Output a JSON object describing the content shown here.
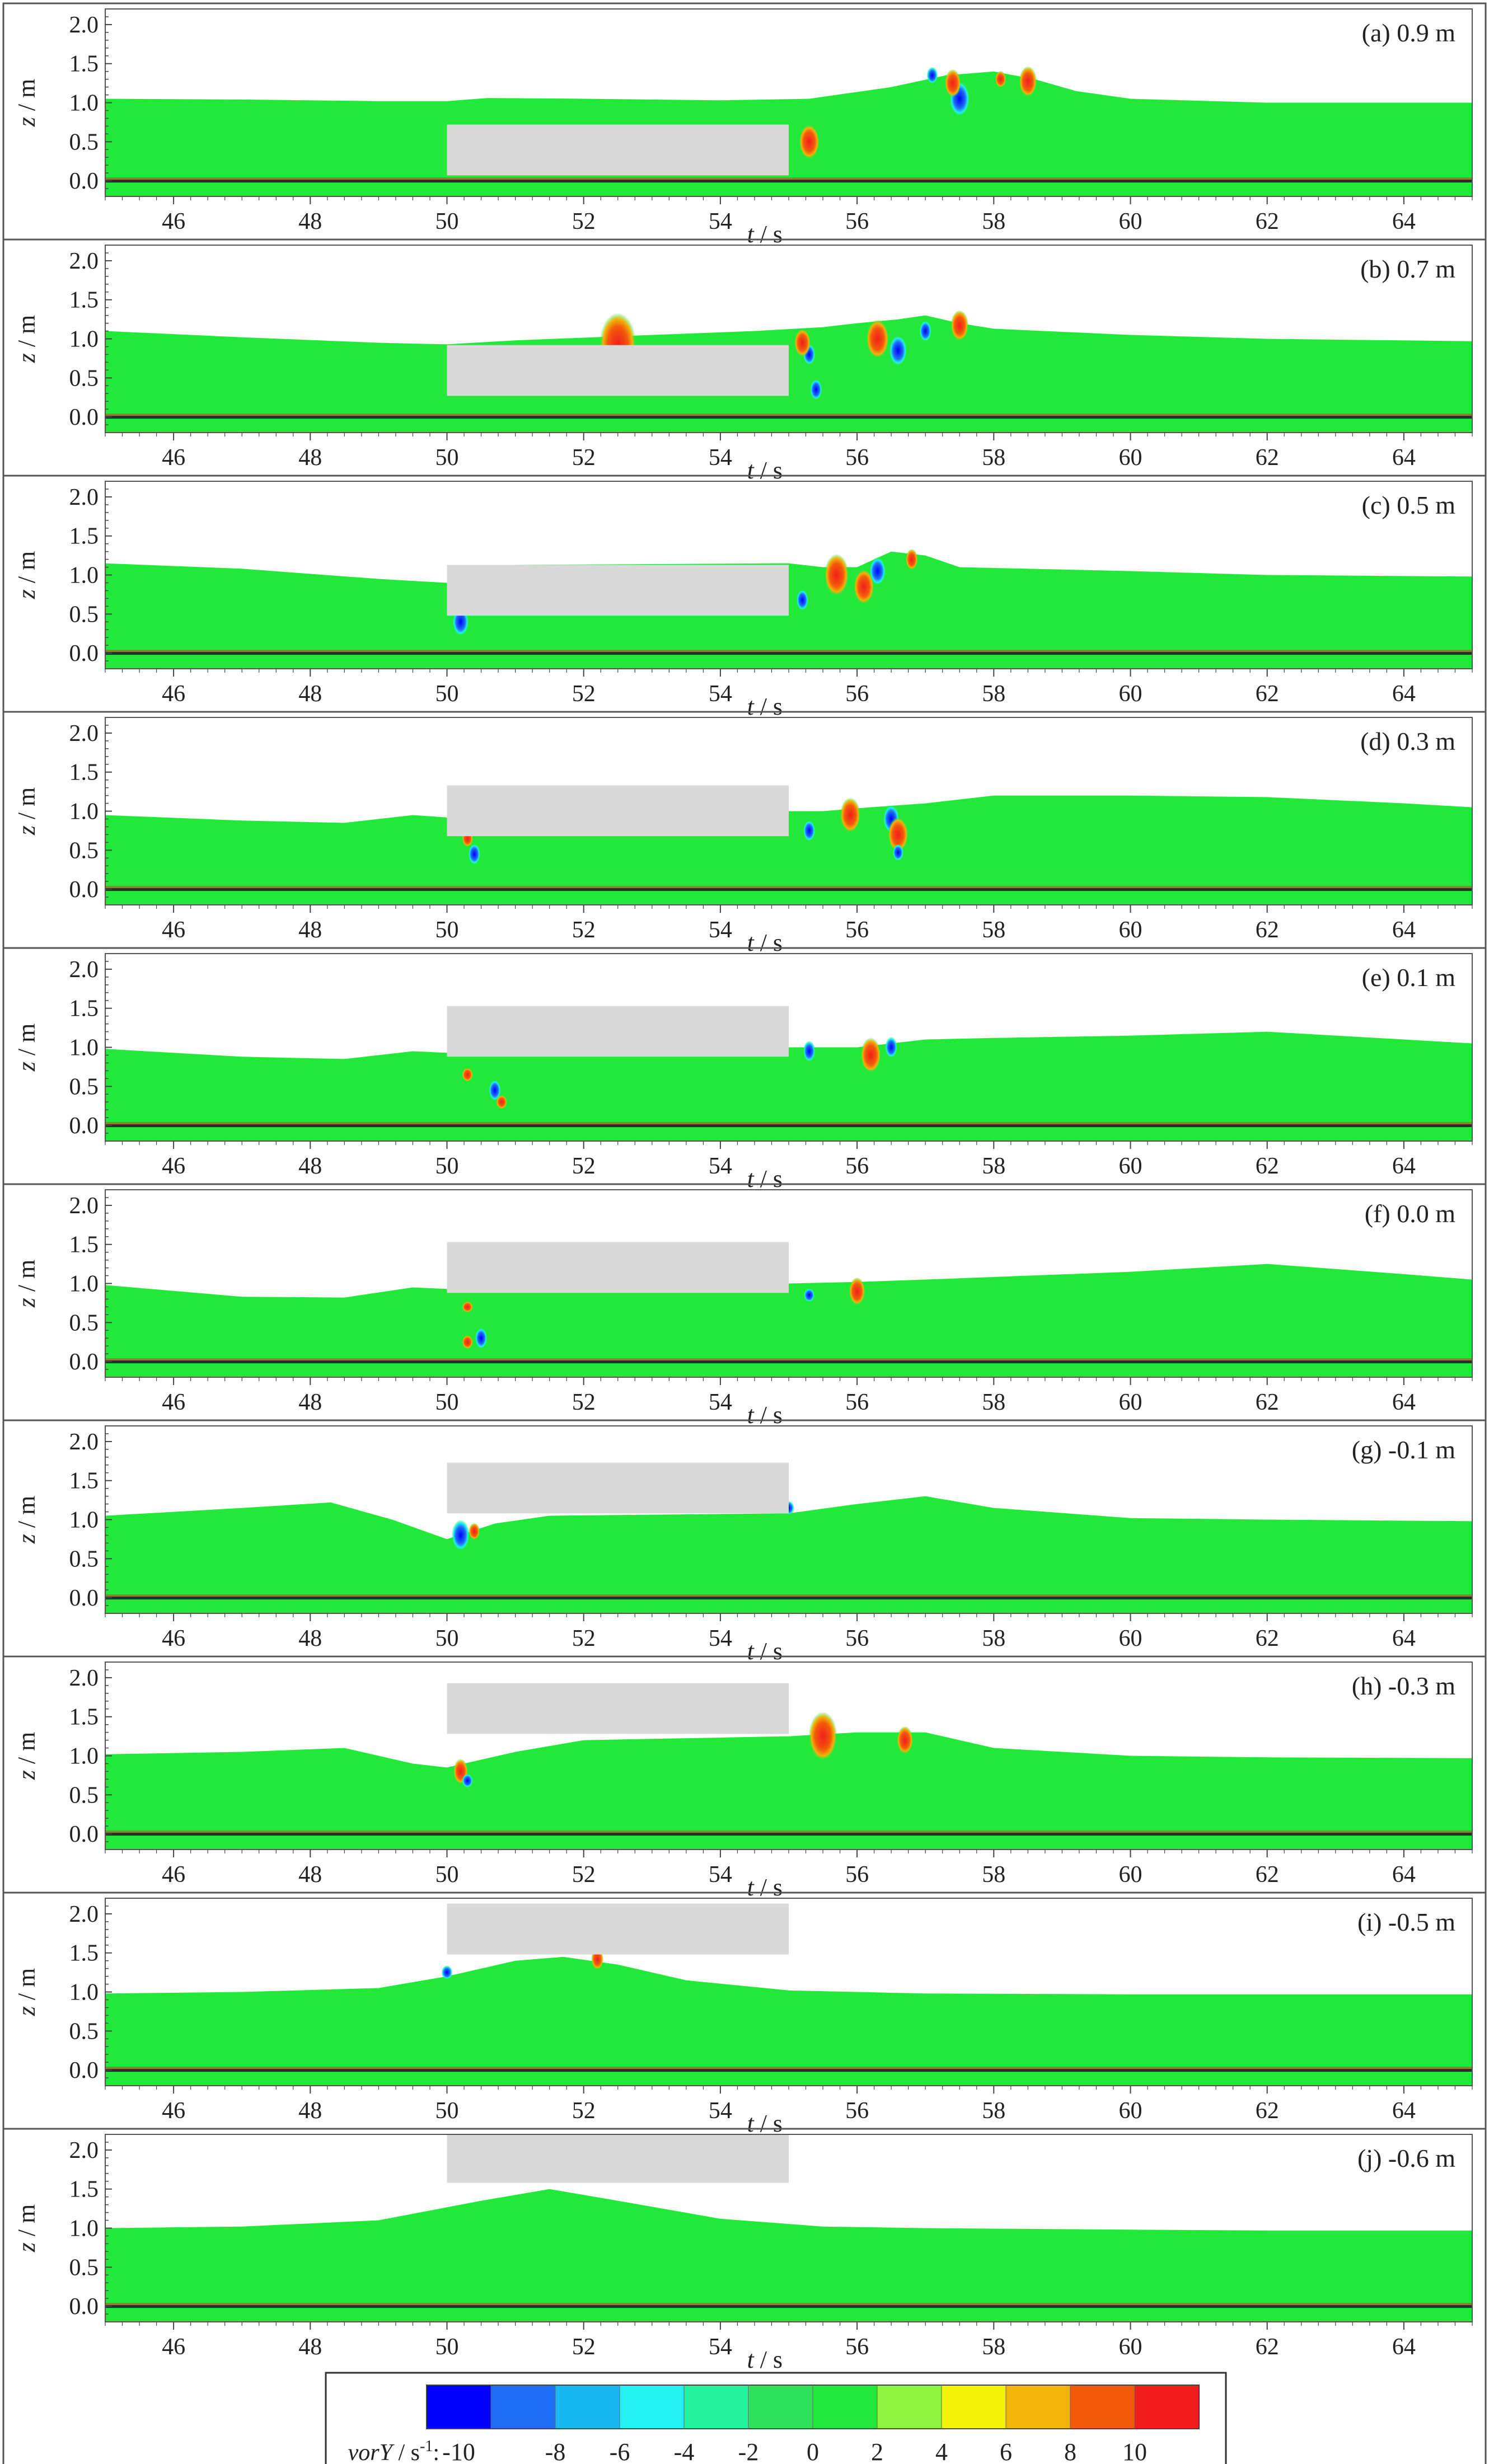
{
  "chart_data": {
    "type": "heatmap",
    "description_variable": "vorY",
    "xlabel_italic": "t",
    "xlabel_unit": " / s",
    "ylabel_italic": "z",
    "ylabel_unit": " / m",
    "xlim": [
      45,
      65
    ],
    "ylim": [
      -0.2,
      2.2
    ],
    "xticks": [
      46,
      48,
      50,
      52,
      54,
      56,
      58,
      60,
      62,
      64
    ],
    "yticks": [
      0.0,
      0.5,
      1.0,
      1.5,
      2.0
    ],
    "ytick_labels": [
      "0.0",
      "0.5",
      "1.0",
      "1.5",
      "2.0"
    ],
    "background_color": "#22e83a",
    "water_color": "#22e83a",
    "air_color": "#ffffff",
    "structure_color": "#d9d9d9",
    "panels": [
      {
        "label": "(a) 0.9 m",
        "structure": {
          "x": [
            50,
            55
          ],
          "z": [
            0.07,
            0.72
          ]
        },
        "surface": [
          [
            45,
            1.05
          ],
          [
            47,
            1.04
          ],
          [
            49,
            1.02
          ],
          [
            50,
            1.02
          ],
          [
            50.6,
            1.06
          ],
          [
            52,
            1.05
          ],
          [
            54,
            1.03
          ],
          [
            55.3,
            1.05
          ],
          [
            56.5,
            1.2
          ],
          [
            57.3,
            1.35
          ],
          [
            58,
            1.4
          ],
          [
            58.6,
            1.3
          ],
          [
            59.2,
            1.15
          ],
          [
            60,
            1.05
          ],
          [
            62,
            1.0
          ],
          [
            65,
            1.0
          ]
        ],
        "vortices": [
          {
            "x": 55.3,
            "z": 0.5,
            "r": 0.25,
            "sign": 1
          },
          {
            "x": 57.5,
            "z": 1.05,
            "r": 0.25,
            "sign": -1
          },
          {
            "x": 57.4,
            "z": 1.25,
            "r": 0.2,
            "sign": 1
          },
          {
            "x": 57.1,
            "z": 1.35,
            "r": 0.12,
            "sign": -1
          },
          {
            "x": 58.5,
            "z": 1.27,
            "r": 0.22,
            "sign": 1
          },
          {
            "x": 58.1,
            "z": 1.3,
            "r": 0.12,
            "sign": 1
          }
        ]
      },
      {
        "label": "(b) 0.7 m",
        "structure": {
          "x": [
            50,
            55
          ],
          "z": [
            0.27,
            0.92
          ]
        },
        "surface": [
          [
            45,
            1.1
          ],
          [
            47,
            1.02
          ],
          [
            49,
            0.95
          ],
          [
            50,
            0.93
          ],
          [
            51,
            0.98
          ],
          [
            53,
            1.05
          ],
          [
            54.5,
            1.1
          ],
          [
            55.5,
            1.15
          ],
          [
            56,
            1.2
          ],
          [
            56.6,
            1.25
          ],
          [
            57,
            1.3
          ],
          [
            57.5,
            1.2
          ],
          [
            58,
            1.13
          ],
          [
            60,
            1.05
          ],
          [
            62,
            1.0
          ],
          [
            65,
            0.97
          ]
        ],
        "vortices": [
          {
            "x": 52.5,
            "z": 0.93,
            "r": 0.45,
            "sign": 1
          },
          {
            "x": 55.3,
            "z": 0.8,
            "r": 0.15,
            "sign": -1
          },
          {
            "x": 55.4,
            "z": 0.35,
            "r": 0.15,
            "sign": -1
          },
          {
            "x": 55.2,
            "z": 0.95,
            "r": 0.2,
            "sign": 1
          },
          {
            "x": 56.3,
            "z": 1.0,
            "r": 0.28,
            "sign": 1
          },
          {
            "x": 56.6,
            "z": 0.85,
            "r": 0.22,
            "sign": -1
          },
          {
            "x": 57.0,
            "z": 1.1,
            "r": 0.15,
            "sign": -1
          },
          {
            "x": 57.5,
            "z": 1.17,
            "r": 0.22,
            "sign": 1
          }
        ]
      },
      {
        "label": "(c) 0.5 m",
        "structure": {
          "x": [
            50,
            55
          ],
          "z": [
            0.48,
            1.13
          ]
        },
        "surface": [
          [
            45,
            1.15
          ],
          [
            47,
            1.08
          ],
          [
            49,
            0.95
          ],
          [
            50,
            0.9
          ],
          [
            51,
            1.13
          ],
          [
            55,
            1.15
          ],
          [
            55.5,
            1.1
          ],
          [
            56,
            1.1
          ],
          [
            56.5,
            1.3
          ],
          [
            57,
            1.25
          ],
          [
            57.5,
            1.1
          ],
          [
            60,
            1.05
          ],
          [
            62,
            1.0
          ],
          [
            65,
            0.98
          ]
        ],
        "vortices": [
          {
            "x": 50.2,
            "z": 0.4,
            "r": 0.2,
            "sign": -1
          },
          {
            "x": 55.2,
            "z": 0.68,
            "r": 0.15,
            "sign": -1
          },
          {
            "x": 55.7,
            "z": 1.0,
            "r": 0.3,
            "sign": 1
          },
          {
            "x": 56.1,
            "z": 0.85,
            "r": 0.25,
            "sign": 1
          },
          {
            "x": 56.3,
            "z": 1.05,
            "r": 0.2,
            "sign": -1
          },
          {
            "x": 56.8,
            "z": 1.2,
            "r": 0.15,
            "sign": 1
          }
        ]
      },
      {
        "label": "(d) 0.3 m",
        "structure": {
          "x": [
            50,
            55
          ],
          "z": [
            0.68,
            1.33
          ]
        },
        "surface": [
          [
            45,
            0.95
          ],
          [
            47,
            0.88
          ],
          [
            48.5,
            0.85
          ],
          [
            49.5,
            0.95
          ],
          [
            50,
            0.92
          ],
          [
            55,
            1.0
          ],
          [
            55.5,
            1.0
          ],
          [
            56.2,
            1.05
          ],
          [
            57,
            1.1
          ],
          [
            58,
            1.2
          ],
          [
            60,
            1.2
          ],
          [
            62,
            1.18
          ],
          [
            64,
            1.1
          ],
          [
            65,
            1.05
          ]
        ],
        "vortices": [
          {
            "x": 50.4,
            "z": 0.45,
            "r": 0.15,
            "sign": -1
          },
          {
            "x": 50.3,
            "z": 0.65,
            "r": 0.12,
            "sign": 1
          },
          {
            "x": 55.3,
            "z": 0.75,
            "r": 0.15,
            "sign": -1
          },
          {
            "x": 55.9,
            "z": 0.95,
            "r": 0.25,
            "sign": 1
          },
          {
            "x": 56.5,
            "z": 0.9,
            "r": 0.2,
            "sign": -1
          },
          {
            "x": 56.6,
            "z": 0.7,
            "r": 0.25,
            "sign": 1
          },
          {
            "x": 56.6,
            "z": 0.47,
            "r": 0.12,
            "sign": -1
          }
        ]
      },
      {
        "label": "(e) 0.1 m",
        "structure": {
          "x": [
            50,
            55
          ],
          "z": [
            0.88,
            1.53
          ]
        },
        "surface": [
          [
            45,
            0.98
          ],
          [
            47,
            0.88
          ],
          [
            48.5,
            0.85
          ],
          [
            49.5,
            0.95
          ],
          [
            50,
            0.93
          ],
          [
            55,
            1.0
          ],
          [
            56,
            1.0
          ],
          [
            57,
            1.1
          ],
          [
            58,
            1.12
          ],
          [
            60,
            1.15
          ],
          [
            62,
            1.2
          ],
          [
            64,
            1.1
          ],
          [
            65,
            1.05
          ]
        ],
        "vortices": [
          {
            "x": 50.3,
            "z": 0.65,
            "r": 0.1,
            "sign": 1
          },
          {
            "x": 50.7,
            "z": 0.45,
            "r": 0.15,
            "sign": -1
          },
          {
            "x": 50.8,
            "z": 0.3,
            "r": 0.1,
            "sign": 1
          },
          {
            "x": 55.3,
            "z": 0.95,
            "r": 0.15,
            "sign": -1
          },
          {
            "x": 56.2,
            "z": 0.9,
            "r": 0.25,
            "sign": 1
          },
          {
            "x": 56.5,
            "z": 1.0,
            "r": 0.15,
            "sign": -1
          }
        ]
      },
      {
        "label": "(f) 0.0 m",
        "structure": {
          "x": [
            50,
            55
          ],
          "z": [
            0.88,
            1.53
          ]
        },
        "surface": [
          [
            45,
            0.98
          ],
          [
            47,
            0.83
          ],
          [
            48.5,
            0.82
          ],
          [
            49.5,
            0.95
          ],
          [
            50,
            0.93
          ],
          [
            55,
            1.0
          ],
          [
            56,
            1.02
          ],
          [
            57,
            1.05
          ],
          [
            60,
            1.15
          ],
          [
            62,
            1.25
          ],
          [
            64,
            1.12
          ],
          [
            65,
            1.05
          ]
        ],
        "vortices": [
          {
            "x": 50.5,
            "z": 0.3,
            "r": 0.15,
            "sign": -1
          },
          {
            "x": 50.3,
            "z": 0.25,
            "r": 0.1,
            "sign": 1
          },
          {
            "x": 50.3,
            "z": 0.7,
            "r": 0.08,
            "sign": 1
          },
          {
            "x": 55.3,
            "z": 0.85,
            "r": 0.1,
            "sign": -1
          },
          {
            "x": 56.0,
            "z": 0.9,
            "r": 0.2,
            "sign": 1
          }
        ]
      },
      {
        "label": "(g) -0.1 m",
        "structure": {
          "x": [
            50,
            55
          ],
          "z": [
            1.08,
            1.73
          ]
        },
        "surface": [
          [
            45,
            1.05
          ],
          [
            47,
            1.15
          ],
          [
            48.3,
            1.22
          ],
          [
            49.2,
            1.0
          ],
          [
            50,
            0.75
          ],
          [
            50.7,
            0.95
          ],
          [
            51.5,
            1.05
          ],
          [
            55,
            1.08
          ],
          [
            56,
            1.2
          ],
          [
            57,
            1.3
          ],
          [
            58,
            1.15
          ],
          [
            60,
            1.02
          ],
          [
            62,
            1.0
          ],
          [
            65,
            0.98
          ]
        ],
        "vortices": [
          {
            "x": 50.2,
            "z": 0.8,
            "r": 0.22,
            "sign": -1
          },
          {
            "x": 50.4,
            "z": 0.85,
            "r": 0.12,
            "sign": 1
          },
          {
            "x": 55.0,
            "z": 1.15,
            "r": 0.1,
            "sign": -1
          }
        ]
      },
      {
        "label": "(h) -0.3 m",
        "structure": {
          "x": [
            50,
            55
          ],
          "z": [
            1.28,
            1.93
          ]
        },
        "surface": [
          [
            45,
            1.02
          ],
          [
            47,
            1.05
          ],
          [
            48.5,
            1.1
          ],
          [
            49.5,
            0.9
          ],
          [
            50,
            0.85
          ],
          [
            51,
            1.05
          ],
          [
            52,
            1.2
          ],
          [
            55,
            1.25
          ],
          [
            56,
            1.3
          ],
          [
            57,
            1.3
          ],
          [
            58,
            1.1
          ],
          [
            60,
            1.0
          ],
          [
            62,
            0.98
          ],
          [
            65,
            0.97
          ]
        ],
        "vortices": [
          {
            "x": 50.2,
            "z": 0.8,
            "r": 0.18,
            "sign": 1
          },
          {
            "x": 50.3,
            "z": 0.68,
            "r": 0.1,
            "sign": -1
          },
          {
            "x": 55.5,
            "z": 1.25,
            "r": 0.35,
            "sign": 1
          },
          {
            "x": 56.7,
            "z": 1.2,
            "r": 0.2,
            "sign": 1
          }
        ]
      },
      {
        "label": "(i) -0.5 m",
        "structure": {
          "x": [
            50,
            55
          ],
          "z": [
            1.48,
            2.13
          ]
        },
        "surface": [
          [
            45,
            0.98
          ],
          [
            47,
            1.0
          ],
          [
            49,
            1.05
          ],
          [
            50,
            1.2
          ],
          [
            51,
            1.4
          ],
          [
            51.7,
            1.45
          ],
          [
            52.5,
            1.35
          ],
          [
            53.5,
            1.15
          ],
          [
            55,
            1.02
          ],
          [
            57,
            0.98
          ],
          [
            60,
            0.97
          ],
          [
            62,
            0.97
          ],
          [
            65,
            0.97
          ]
        ],
        "vortices": [
          {
            "x": 50.0,
            "z": 1.25,
            "r": 0.1,
            "sign": -1
          },
          {
            "x": 52.2,
            "z": 1.42,
            "r": 0.15,
            "sign": 1
          }
        ]
      },
      {
        "label": "(j) -0.6 m",
        "structure": {
          "x": [
            50,
            55
          ],
          "z": [
            1.58,
            2.23
          ]
        },
        "surface": [
          [
            45,
            1.0
          ],
          [
            47,
            1.02
          ],
          [
            49,
            1.1
          ],
          [
            50.5,
            1.35
          ],
          [
            51.5,
            1.5
          ],
          [
            52.5,
            1.35
          ],
          [
            54,
            1.12
          ],
          [
            55.5,
            1.02
          ],
          [
            57,
            1.0
          ],
          [
            60,
            0.98
          ],
          [
            62,
            0.97
          ],
          [
            65,
            0.97
          ]
        ],
        "vortices": []
      }
    ],
    "colorbar": {
      "label_italic": "vorY",
      "label_unit": " / s",
      "label_unit_sup": "-1",
      "label_sep": ":",
      "levels": [
        -10,
        -8,
        -6,
        -4,
        -2,
        0,
        2,
        4,
        6,
        8,
        10
      ],
      "tick_labels": [
        "-10",
        "-8",
        "-6",
        "-4",
        "-2",
        "0",
        "2",
        "4",
        "6",
        "8",
        "10"
      ],
      "colors": [
        "#0000ff",
        "#1e6cf2",
        "#19b7f2",
        "#22f2f2",
        "#26f29e",
        "#2ee05a",
        "#22e83a",
        "#8cf23c",
        "#f2f20a",
        "#f2b40a",
        "#f25a0a",
        "#f21e1e"
      ]
    }
  }
}
